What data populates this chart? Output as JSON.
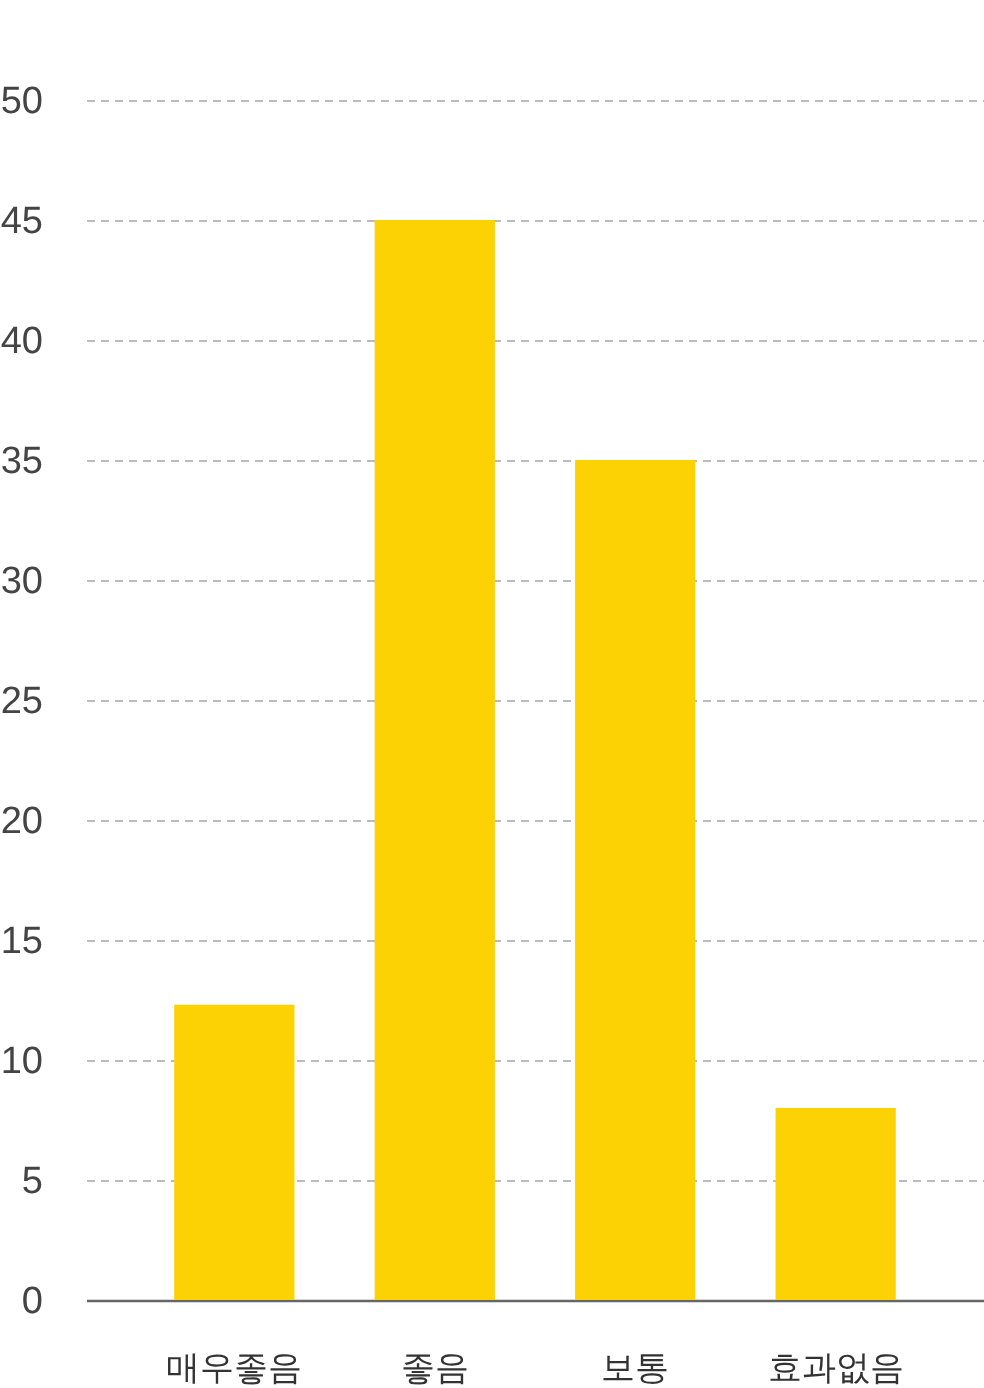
{
  "chart_data": {
    "type": "bar",
    "categories": [
      "매우좋음",
      "좋음",
      "보통",
      "효과없음"
    ],
    "values": [
      12.3,
      45,
      35,
      8
    ],
    "color": "#fdd205",
    "ylim": [
      0,
      50
    ],
    "yticks": [
      0,
      5,
      10,
      15,
      20,
      25,
      30,
      35,
      40,
      45,
      50
    ],
    "grid": "y"
  }
}
